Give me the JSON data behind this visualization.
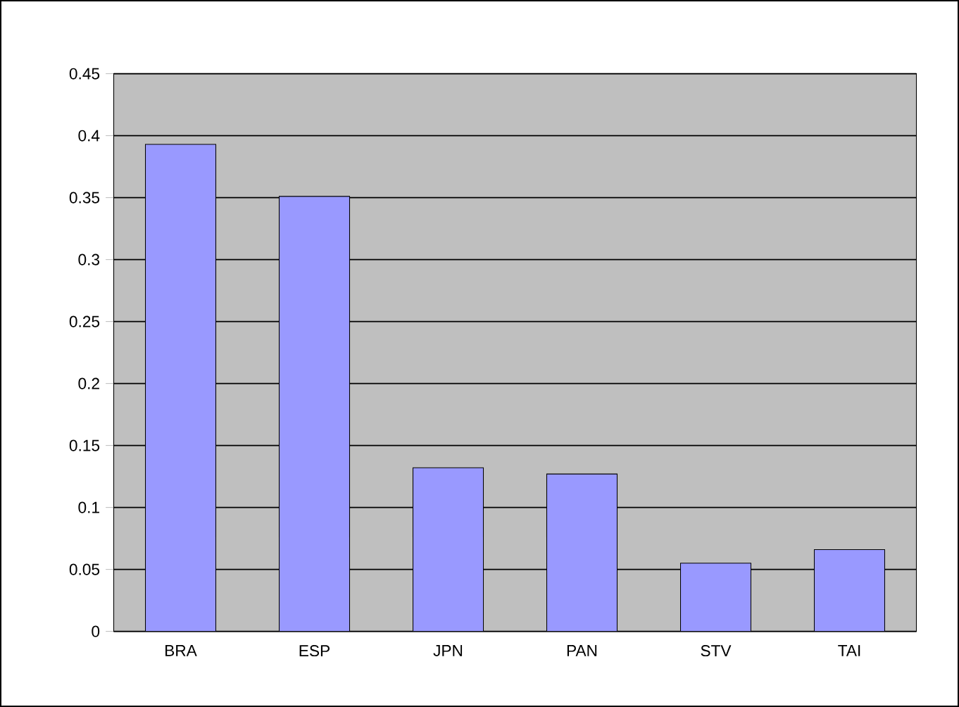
{
  "chart_data": {
    "type": "bar",
    "categories": [
      "BRA",
      "ESP",
      "JPN",
      "PAN",
      "STV",
      "TAI"
    ],
    "values": [
      0.393,
      0.351,
      0.132,
      0.127,
      0.055,
      0.066
    ],
    "color": "#9999ff",
    "ylim": [
      0,
      0.45
    ],
    "yticks": [
      0,
      0.05,
      0.1,
      0.15,
      0.2,
      0.25,
      0.3,
      0.35,
      0.4,
      0.45
    ],
    "grid": "y"
  }
}
